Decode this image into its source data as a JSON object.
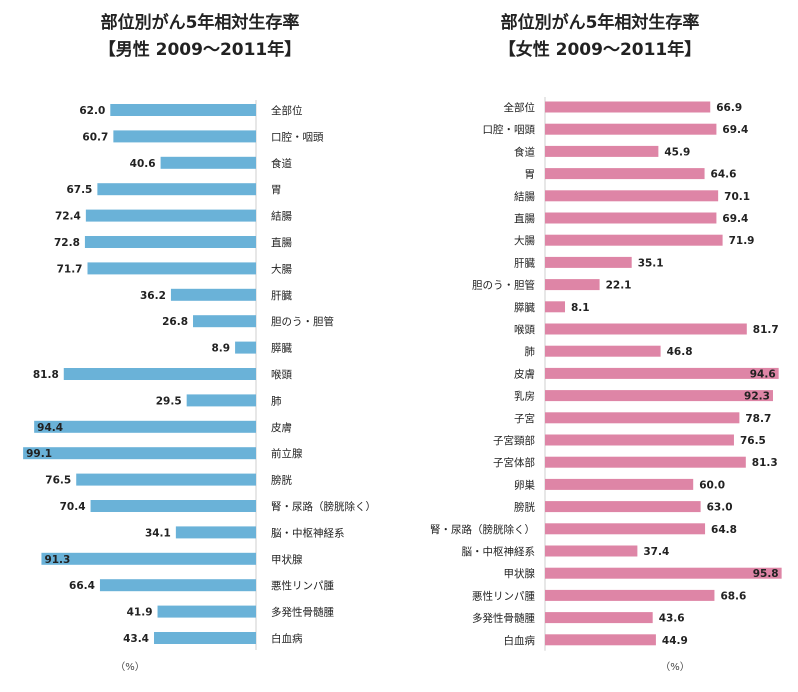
{
  "male_title_line1": "部位別がん5年相対生存率",
  "male_title_line2": "【男性 2009〜2011年】",
  "female_title_line1": "部位別がん5年相対生存率",
  "female_title_line2": "【女性 2009〜2011年】",
  "unit_label": "（%）",
  "colors": {
    "male": "#6ab2d8",
    "female": "#de85a6"
  },
  "chart_data": [
    {
      "type": "bar",
      "orientation": "horizontal-reversed",
      "title": "部位別がん5年相対生存率 【男性 2009〜2011年】",
      "xlim": [
        0,
        100
      ],
      "unit": "（%）",
      "categories": [
        "全部位",
        "口腔・咽頭",
        "食道",
        "胃",
        "結腸",
        "直腸",
        "大腸",
        "肝臓",
        "胆のう・胆管",
        "膵臓",
        "喉頭",
        "肺",
        "皮膚",
        "前立腺",
        "膀胱",
        "腎・尿路（膀胱除く）",
        "脳・中枢神経系",
        "甲状腺",
        "悪性リンパ腫",
        "多発性骨髄腫",
        "白血病"
      ],
      "values": [
        62.0,
        60.7,
        40.6,
        67.5,
        72.4,
        72.8,
        71.7,
        36.2,
        26.8,
        8.9,
        81.8,
        29.5,
        94.4,
        99.1,
        76.5,
        70.4,
        34.1,
        91.3,
        66.4,
        41.9,
        43.4
      ],
      "value_labels": [
        "62.0",
        "60.7",
        "40.6",
        "67.5",
        "72.4",
        "72.8",
        "71.7",
        "36.2",
        "26.8",
        "8.9",
        "81.8",
        "29.5",
        "94.4",
        "99.1",
        "76.5",
        "70.4",
        "34.1",
        "91.3",
        "66.4",
        "41.9",
        "43.4"
      ],
      "color": "#6ab2d8"
    },
    {
      "type": "bar",
      "orientation": "horizontal",
      "title": "部位別がん5年相対生存率 【女性 2009〜2011年】",
      "xlim": [
        0,
        100
      ],
      "unit": "（%）",
      "categories": [
        "全部位",
        "口腔・咽頭",
        "食道",
        "胃",
        "結腸",
        "直腸",
        "大腸",
        "肝臓",
        "胆のう・胆管",
        "膵臓",
        "喉頭",
        "肺",
        "皮膚",
        "乳房",
        "子宮",
        "子宮頸部",
        "子宮体部",
        "卵巣",
        "膀胱",
        "腎・尿路（膀胱除く）",
        "脳・中枢神経系",
        "甲状腺",
        "悪性リンパ腫",
        "多発性骨髄腫",
        "白血病"
      ],
      "values": [
        66.9,
        69.4,
        45.9,
        64.6,
        70.1,
        69.4,
        71.9,
        35.1,
        22.1,
        8.1,
        81.7,
        46.8,
        94.6,
        92.3,
        78.7,
        76.5,
        81.3,
        60.0,
        63.0,
        64.8,
        37.4,
        95.8,
        68.6,
        43.6,
        44.9
      ],
      "value_labels": [
        "66.9",
        "69.4",
        "45.9",
        "64.6",
        "70.1",
        "69.4",
        "71.9",
        "35.1",
        "22.1",
        "8.1",
        "81.7",
        "46.8",
        "94.6",
        "92.3",
        "78.7",
        "76.5",
        "81.3",
        "60.0",
        "63.0",
        "64.8",
        "37.4",
        "95.8",
        "68.6",
        "43.6",
        "44.9"
      ],
      "color": "#de85a6"
    }
  ]
}
